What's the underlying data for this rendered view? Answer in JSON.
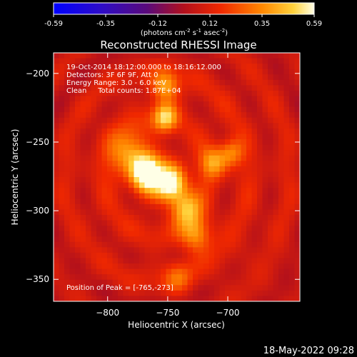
{
  "chart_data": {
    "type": "heatmap",
    "title": "Reconstructed RHESSI Image",
    "xlabel": "Heliocentric X (arcsec)",
    "ylabel": "Heliocentric Y (arcsec)",
    "xlim": [
      -845,
      -640
    ],
    "ylim": [
      -366,
      -185
    ],
    "x_ticks": [
      -800,
      -750,
      -700
    ],
    "y_ticks": [
      -200,
      -250,
      -300,
      -350
    ],
    "colorbar": {
      "ticks": [
        "-0.59",
        "-0.35",
        "-0.12",
        "0.12",
        "0.35",
        "0.59"
      ],
      "range": [
        -0.59,
        0.59
      ],
      "unit_label": "(photons cm",
      "unit_exp1": "-2",
      "unit_mid": " s",
      "unit_exp2": "-1",
      "unit_mid2": " asec",
      "unit_exp3": "-2",
      "unit_end": ")"
    },
    "info_lines": [
      "19-Oct-2014 18:12:00.000 to 18:16:12.000",
      "Detectors: 3F 6F 9F, Att 0",
      "Energy Range: 3.0 - 6.0 keV",
      "Clean     Total counts: 1.87E+04"
    ],
    "peak_label": "Position of Peak = [-765,-273]",
    "sources": [
      {
        "x": -767,
        "y": -273,
        "intensity": 0.59,
        "sigma": 9
      },
      {
        "x": -747,
        "y": -280,
        "intensity": 0.52,
        "sigma": 9
      },
      {
        "x": -782,
        "y": -258,
        "intensity": 0.32,
        "sigma": 12
      },
      {
        "x": -735,
        "y": -298,
        "intensity": 0.36,
        "sigma": 9
      },
      {
        "x": -726,
        "y": -318,
        "intensity": 0.3,
        "sigma": 9
      },
      {
        "x": -752,
        "y": -232,
        "intensity": 0.4,
        "sigma": 7
      },
      {
        "x": -752,
        "y": -210,
        "intensity": 0.34,
        "sigma": 8
      },
      {
        "x": -712,
        "y": -265,
        "intensity": 0.3,
        "sigma": 8
      },
      {
        "x": -697,
        "y": -258,
        "intensity": 0.25,
        "sigma": 7
      },
      {
        "x": -742,
        "y": -348,
        "intensity": 0.18,
        "sigma": 8
      }
    ]
  },
  "footer": {
    "date": "18-May-2022 09:28"
  }
}
